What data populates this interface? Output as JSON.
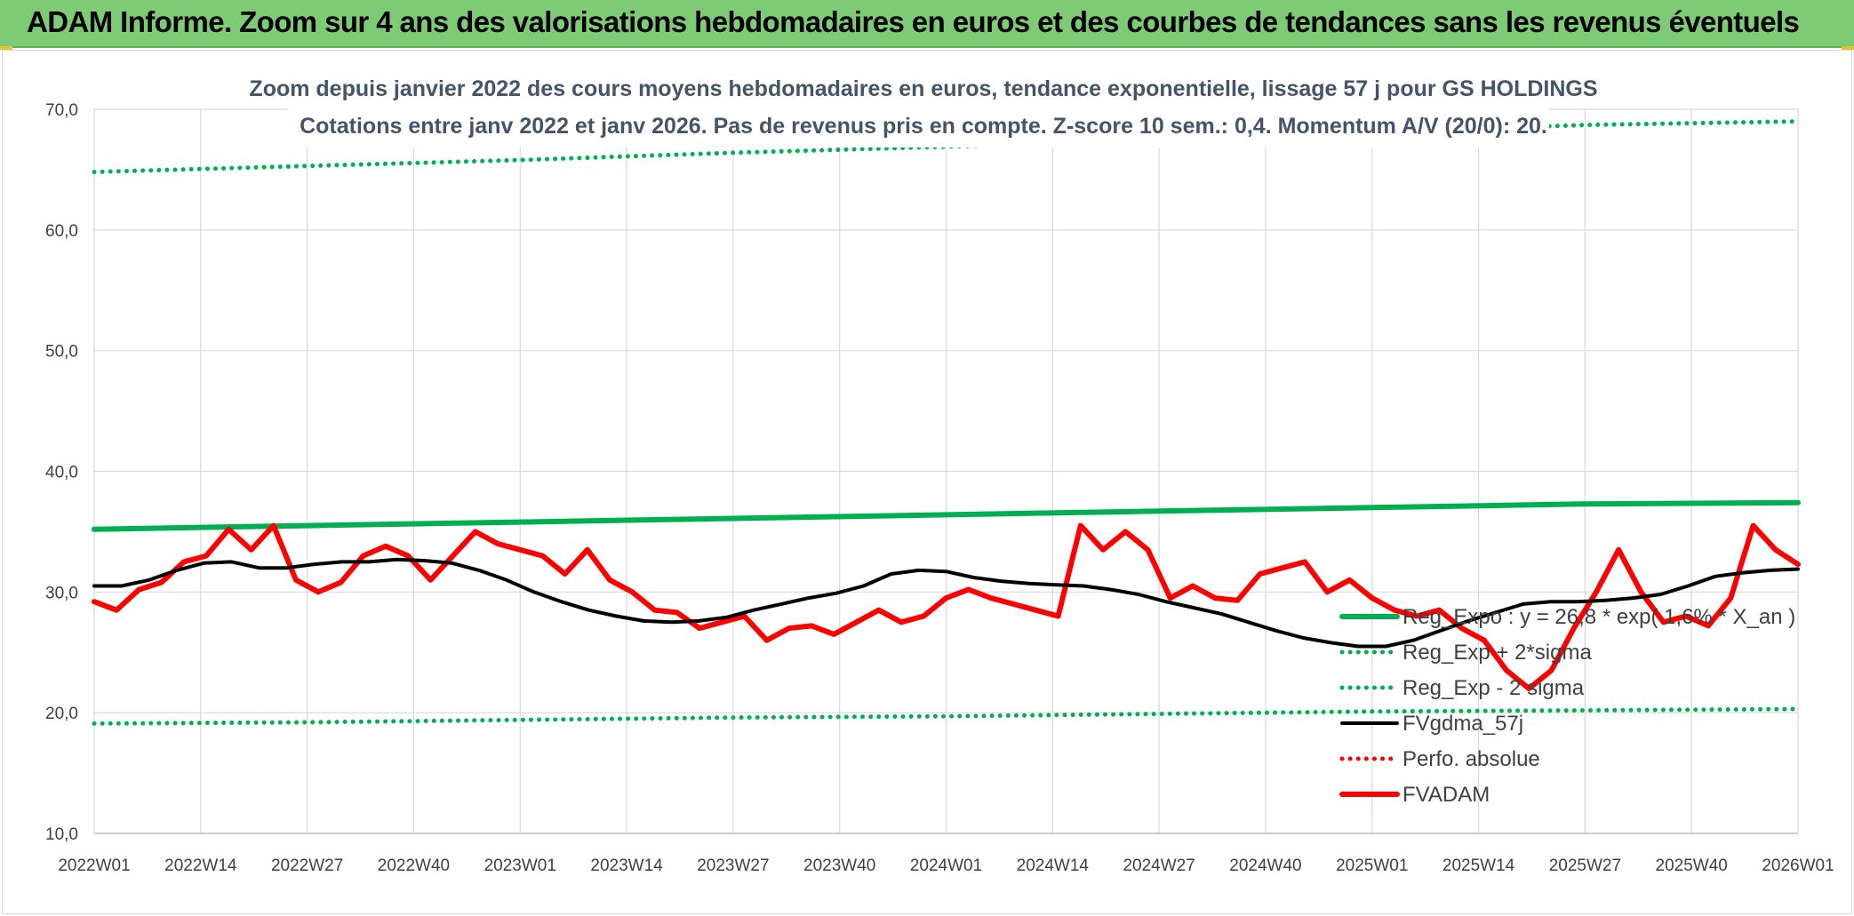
{
  "header": {
    "title": "ADAM Informe. Zoom sur 4 ans des valorisations hebdomadaires en euros et des courbes de tendances sans les revenus éventuels"
  },
  "chart_data": {
    "type": "line",
    "subtitle_lines": [
      "Zoom depuis janvier 2022 des cours moyens hebdomadaires en euros, tendance exponentielle, lissage 57 j pour GS HOLDINGS",
      "Cotations entre janv 2022 et janv 2026. Pas de revenus pris en compte. Z-score 10 sem.: 0,4. Momentum A/V (20/0): 20."
    ],
    "y_tick_labels": [
      "10,0",
      "20,0",
      "30,0",
      "40,0",
      "50,0",
      "60,0",
      "70,0"
    ],
    "ylim": [
      10,
      70
    ],
    "x_tick_labels": [
      "2022W01",
      "2022W14",
      "2022W27",
      "2022W40",
      "2023W01",
      "2023W14",
      "2023W27",
      "2023W40",
      "2024W01",
      "2024W14",
      "2024W27",
      "2024W40",
      "2025W01",
      "2025W14",
      "2025W27",
      "2025W40",
      "2026W01"
    ],
    "grid": true,
    "legend_position": "bottom-right",
    "series": [
      {
        "name": "Reg_Expo : y = 26,8 * exp( 1,6% * X_an )",
        "style": "solid-thick",
        "color": "#00b050",
        "values": [
          35.2,
          35.5,
          35.8,
          36.1,
          36.4,
          36.7,
          37.0,
          37.3,
          37.4
        ]
      },
      {
        "name": "Reg_Exp + 2*sigma",
        "style": "dotted",
        "color": "#00b050",
        "values": [
          64.8,
          65.3,
          65.8,
          66.4,
          66.9,
          67.5,
          68.1,
          68.7,
          69.0
        ]
      },
      {
        "name": "Reg_Exp - 2 sigma",
        "style": "dotted",
        "color": "#00b050",
        "values": [
          19.1,
          19.2,
          19.4,
          19.6,
          19.7,
          19.9,
          20.1,
          20.2,
          20.3
        ]
      },
      {
        "name": "FVgdma_57j",
        "style": "solid",
        "color": "#000000",
        "values": [
          30.5,
          30.5,
          31.0,
          31.8,
          32.4,
          32.5,
          32.0,
          32.0,
          32.3,
          32.5,
          32.5,
          32.7,
          32.6,
          32.4,
          31.8,
          31.0,
          30.0,
          29.2,
          28.5,
          28.0,
          27.6,
          27.5,
          27.6,
          27.9,
          28.5,
          29.0,
          29.5,
          29.9,
          30.5,
          31.5,
          31.8,
          31.7,
          31.2,
          30.9,
          30.7,
          30.6,
          30.5,
          30.2,
          29.8,
          29.2,
          28.7,
          28.2,
          27.5,
          26.8,
          26.2,
          25.8,
          25.5,
          25.5,
          26.0,
          26.8,
          27.6,
          28.3,
          29.0,
          29.2,
          29.2,
          29.3,
          29.5,
          29.8,
          30.5,
          31.3,
          31.6,
          31.8,
          31.9
        ]
      },
      {
        "name": "Perfo. absolue",
        "style": "dotted",
        "color": "#ff0000",
        "values": []
      },
      {
        "name": "FVADAM",
        "style": "solid-thick",
        "color": "#ff0000",
        "values": [
          29.2,
          28.5,
          30.2,
          30.8,
          32.5,
          33.0,
          35.2,
          33.5,
          35.5,
          31.0,
          30.0,
          30.8,
          33.0,
          33.8,
          33.0,
          31.0,
          33.0,
          35.0,
          34.0,
          33.5,
          33.0,
          31.5,
          33.5,
          31.0,
          30.0,
          28.5,
          28.3,
          27.0,
          27.5,
          28.0,
          26.0,
          27.0,
          27.2,
          26.5,
          27.5,
          28.5,
          27.5,
          28.0,
          29.5,
          30.2,
          29.5,
          29.0,
          28.5,
          28.0,
          35.5,
          33.5,
          35.0,
          33.5,
          29.5,
          30.5,
          29.5,
          29.3,
          31.5,
          32.0,
          32.5,
          30.0,
          31.0,
          29.5,
          28.5,
          28.0,
          28.5,
          27.0,
          26.0,
          23.5,
          22.0,
          23.5,
          27.0,
          30.0,
          33.5,
          30.0,
          27.5,
          28.0,
          27.2,
          29.5,
          35.5,
          33.5,
          32.3
        ]
      }
    ]
  }
}
